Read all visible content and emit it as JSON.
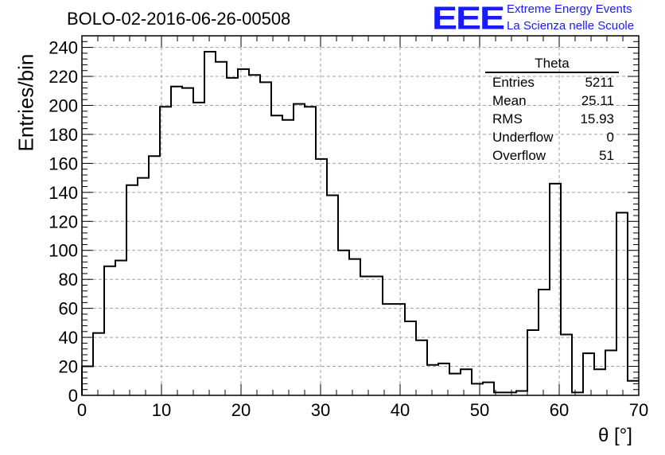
{
  "title": "BOLO-02-2016-06-26-00508",
  "logo": {
    "mark": "EEE",
    "line1": "Extreme Energy Events",
    "line2": "La Scienza nelle Scuole"
  },
  "axes": {
    "xlabel": "θ [°]",
    "ylabel": "Entries/bin"
  },
  "stats": {
    "name": "Theta",
    "rows": [
      {
        "label": "Entries",
        "value": "5211"
      },
      {
        "label": "Mean",
        "value": "25.11"
      },
      {
        "label": "RMS",
        "value": "15.93"
      },
      {
        "label": "Underflow",
        "value": "0"
      },
      {
        "label": "Overflow",
        "value": "51"
      }
    ]
  },
  "chart_data": {
    "type": "histogram",
    "bin_width": 1.4,
    "x_start": 0,
    "values": [
      20,
      43,
      89,
      93,
      145,
      150,
      165,
      199,
      213,
      212,
      202,
      237,
      230,
      219,
      225,
      221,
      216,
      193,
      190,
      201,
      199,
      163,
      138,
      100,
      94,
      82,
      82,
      63,
      63,
      51,
      38,
      21,
      22,
      15,
      18,
      8,
      9,
      2,
      2,
      3,
      45,
      73,
      146,
      42,
      2,
      29,
      18,
      31,
      126,
      10
    ],
    "xlim": [
      0,
      70
    ],
    "ylim": [
      0,
      248
    ],
    "xticks": [
      0,
      10,
      20,
      30,
      40,
      50,
      60,
      70
    ],
    "yticks": [
      0,
      20,
      40,
      60,
      80,
      100,
      120,
      140,
      160,
      180,
      200,
      220,
      240
    ],
    "grid": true,
    "line_color": "#000000"
  }
}
